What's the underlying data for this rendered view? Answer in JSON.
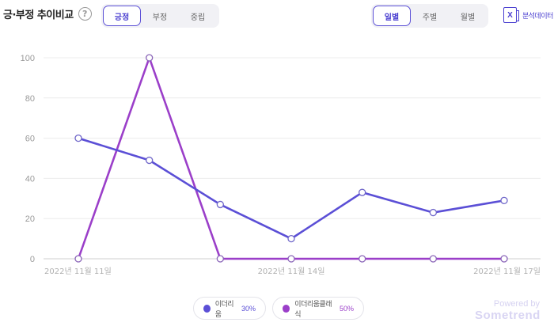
{
  "header": {
    "title": "긍·부정 추이비교",
    "help_icon": "question-circle-icon",
    "sentiment_tabs": [
      "긍정",
      "부정",
      "중립"
    ],
    "sentiment_active": 0,
    "period_tabs": [
      "일별",
      "주별",
      "월별"
    ],
    "period_active": 0,
    "export_label": "분석데이터",
    "export_icon": "excel-icon"
  },
  "legend": [
    {
      "name": "이더리움",
      "value": "30%",
      "color": "#5b4fd6"
    },
    {
      "name": "이더리움클래식",
      "value": "50%",
      "color": "#9b3fc9"
    }
  ],
  "branding": {
    "powered": "Powered by",
    "brand": "Sometrend"
  },
  "chart_data": {
    "type": "line",
    "x": [
      "2022년 11월 11일",
      "2022년 11월 12일",
      "2022년 11월 13일",
      "2022년 11월 14일",
      "2022년 11월 15일",
      "2022년 11월 16일",
      "2022년 11월 17일"
    ],
    "x_tick_labels": [
      "2022년 11월 11일",
      "2022년 11월 14일",
      "2022년 11월 17일"
    ],
    "ylim": [
      0,
      100
    ],
    "yticks": [
      0,
      20,
      40,
      60,
      80,
      100
    ],
    "grid": true,
    "series": [
      {
        "name": "이더리움",
        "color": "#5b4fd6",
        "values": [
          60,
          49,
          27,
          10,
          33,
          23,
          29
        ]
      },
      {
        "name": "이더리움클래식",
        "color": "#9b3fc9",
        "values": [
          0,
          100,
          0,
          0,
          0,
          0,
          0
        ]
      }
    ]
  }
}
